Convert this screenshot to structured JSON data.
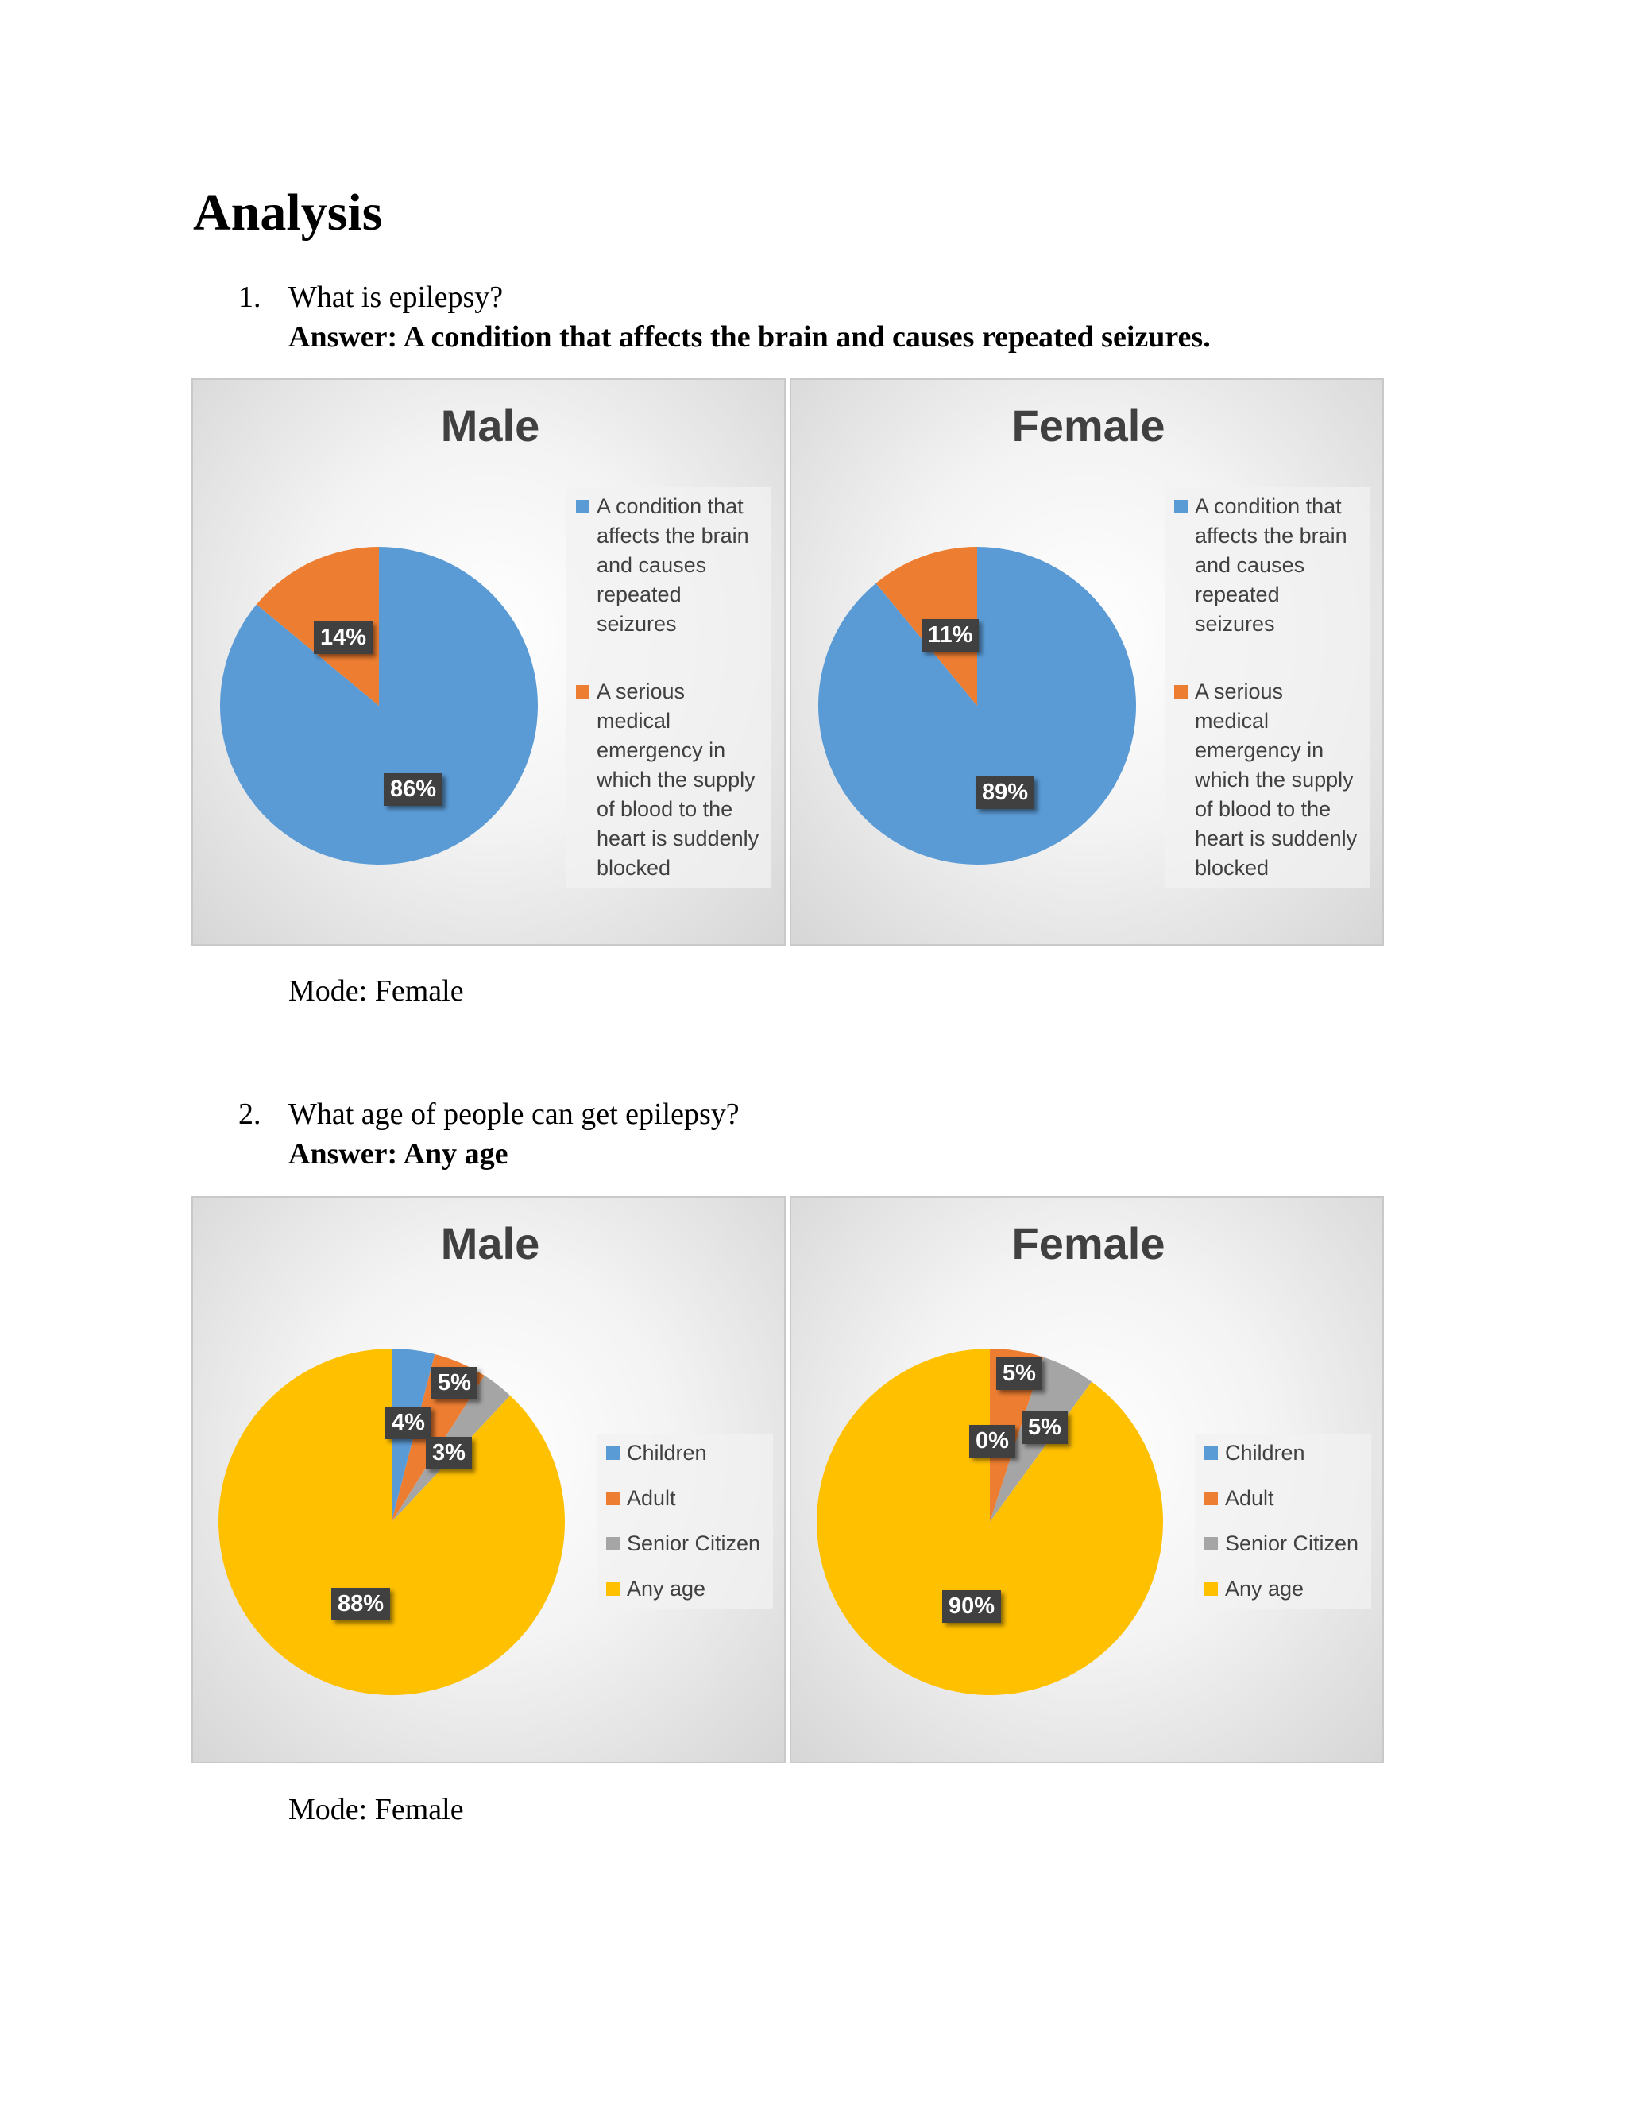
{
  "heading": "Analysis",
  "q1": {
    "number": "1.",
    "question": "What is epilepsy?",
    "answer": "Answer:  A condition  that  affects the  brain  and  causes repeated seizures.",
    "mode": "Mode: Female"
  },
  "q2": {
    "number": "2.",
    "question": "What age of people can get epilepsy?",
    "answer": "Answer:  Any age",
    "mode": "Mode: Female"
  },
  "colors": {
    "blue": "#5B9BD5",
    "orange": "#ED7D31",
    "gray": "#A5A5A5",
    "yellow": "#FFC000"
  },
  "chart_data": [
    {
      "type": "pie",
      "title": "Male",
      "legend": [
        "A condition that affects the brain and causes repeated seizures",
        "A serious medical emergency in which the supply of blood to the heart is suddenly blocked"
      ],
      "legend_lines": [
        [
          "A condition that",
          "affects the brain",
          "and causes",
          "repeated",
          "seizures"
        ],
        [
          "A serious",
          "medical",
          "emergency in",
          "which the supply",
          "of blood to the",
          "heart is suddenly",
          "blocked"
        ]
      ],
      "values": [
        86,
        14
      ],
      "labels": [
        "86%",
        "14%"
      ],
      "legend_position": "right"
    },
    {
      "type": "pie",
      "title": "Female",
      "legend": [
        "A condition that affects the brain and causes repeated seizures",
        "A serious medical emergency in which the supply of blood to the heart is suddenly blocked"
      ],
      "legend_lines": [
        [
          "A condition that",
          "affects the brain",
          "and causes",
          "repeated",
          "seizures"
        ],
        [
          "A serious",
          "medical",
          "emergency in",
          "which the supply",
          "of blood to the",
          "heart is suddenly",
          "blocked"
        ]
      ],
      "values": [
        89,
        11
      ],
      "labels": [
        "89%",
        "11%"
      ],
      "legend_position": "right"
    },
    {
      "type": "pie",
      "title": "Male",
      "legend": [
        "Children",
        "Adult",
        "Senior Citizen",
        "Any age"
      ],
      "values": [
        4,
        5,
        3,
        88
      ],
      "labels": [
        "4%",
        "5%",
        "3%",
        "88%"
      ],
      "legend_position": "right"
    },
    {
      "type": "pie",
      "title": "Female",
      "legend": [
        "Children",
        "Adult",
        "Senior Citizen",
        "Any age"
      ],
      "values": [
        0,
        5,
        5,
        90
      ],
      "labels": [
        "0%",
        "5%",
        "5%",
        "90%"
      ],
      "legend_position": "right"
    }
  ]
}
